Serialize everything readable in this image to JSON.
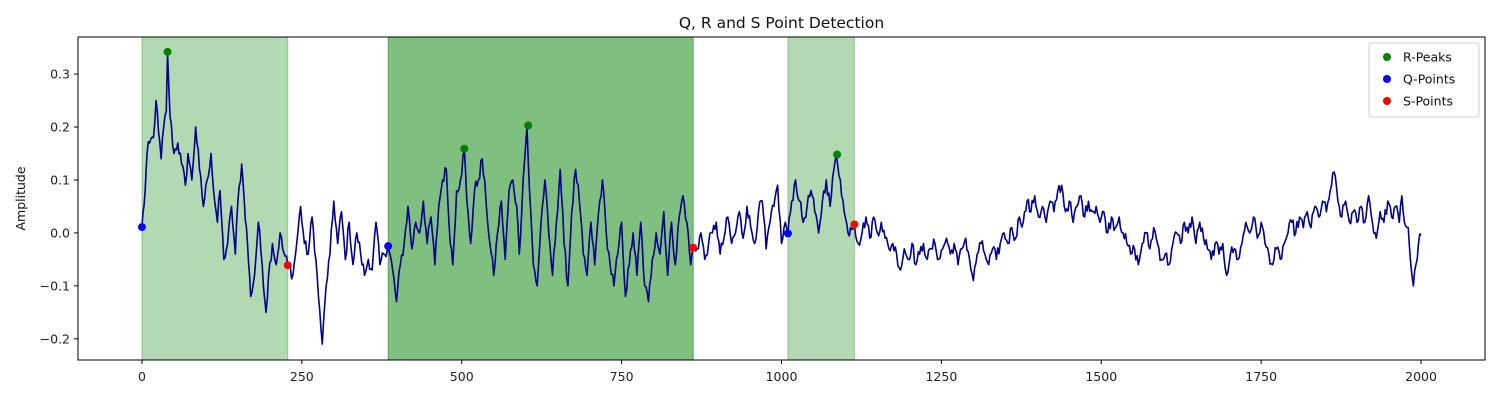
{
  "chart_data": {
    "type": "line",
    "title": "Q, R and S Point Detection",
    "xlabel": "",
    "ylabel": "Amplitude",
    "xlim": [
      -100,
      2100
    ],
    "ylim": [
      -0.24,
      0.37
    ],
    "xticks": [
      0,
      250,
      500,
      750,
      1000,
      1250,
      1500,
      1750,
      2000
    ],
    "yticks": [
      -0.2,
      -0.1,
      0.0,
      0.1,
      0.2,
      0.3
    ],
    "grid": false,
    "legend_position": "top-right",
    "colors": {
      "signal": "#00008b",
      "r_peaks": "#008000",
      "q_points": "#0000ff",
      "s_points": "#ff0000",
      "region": "#008000"
    },
    "shaded_regions": [
      {
        "x0": 0,
        "x1": 228,
        "opacity": 0.3
      },
      {
        "x0": 385,
        "x1": 862,
        "opacity": 0.5
      },
      {
        "x0": 1010,
        "x1": 1114,
        "opacity": 0.3
      }
    ],
    "signal_anchors": [
      [
        0,
        0.012
      ],
      [
        5,
        0.08
      ],
      [
        8,
        0.15
      ],
      [
        12,
        0.17
      ],
      [
        18,
        0.18
      ],
      [
        22,
        0.25
      ],
      [
        26,
        0.19
      ],
      [
        30,
        0.14
      ],
      [
        34,
        0.2
      ],
      [
        38,
        0.23
      ],
      [
        40,
        0.34
      ],
      [
        44,
        0.22
      ],
      [
        50,
        0.15
      ],
      [
        56,
        0.17
      ],
      [
        62,
        0.13
      ],
      [
        68,
        0.09
      ],
      [
        72,
        0.15
      ],
      [
        78,
        0.1
      ],
      [
        84,
        0.2
      ],
      [
        90,
        0.12
      ],
      [
        96,
        0.05
      ],
      [
        102,
        0.1
      ],
      [
        108,
        0.15
      ],
      [
        112,
        0.08
      ],
      [
        118,
        0.02
      ],
      [
        122,
        0.08
      ],
      [
        128,
        -0.05
      ],
      [
        134,
        -0.02
      ],
      [
        140,
        0.05
      ],
      [
        146,
        -0.04
      ],
      [
        150,
        0.06
      ],
      [
        156,
        0.13
      ],
      [
        160,
        0.06
      ],
      [
        165,
        -0.02
      ],
      [
        170,
        -0.12
      ],
      [
        176,
        -0.08
      ],
      [
        182,
        0.02
      ],
      [
        188,
        -0.06
      ],
      [
        194,
        -0.15
      ],
      [
        198,
        -0.08
      ],
      [
        204,
        -0.02
      ],
      [
        210,
        -0.06
      ],
      [
        216,
        0.0
      ],
      [
        220,
        -0.03
      ],
      [
        228,
        -0.06
      ],
      [
        236,
        -0.08
      ],
      [
        242,
        -0.02
      ],
      [
        248,
        0.05
      ],
      [
        254,
        -0.02
      ],
      [
        260,
        -0.04
      ],
      [
        266,
        0.03
      ],
      [
        272,
        -0.05
      ],
      [
        276,
        -0.12
      ],
      [
        282,
        -0.21
      ],
      [
        288,
        -0.1
      ],
      [
        294,
        -0.04
      ],
      [
        300,
        0.06
      ],
      [
        306,
        -0.02
      ],
      [
        312,
        0.04
      ],
      [
        318,
        -0.05
      ],
      [
        324,
        0.02
      ],
      [
        330,
        -0.06
      ],
      [
        336,
        0.0
      ],
      [
        342,
        -0.04
      ],
      [
        348,
        -0.08
      ],
      [
        354,
        -0.05
      ],
      [
        360,
        -0.07
      ],
      [
        366,
        0.02
      ],
      [
        372,
        -0.06
      ],
      [
        378,
        -0.04
      ],
      [
        385,
        -0.025
      ],
      [
        392,
        -0.07
      ],
      [
        398,
        -0.13
      ],
      [
        404,
        -0.06
      ],
      [
        410,
        -0.02
      ],
      [
        416,
        0.05
      ],
      [
        422,
        -0.03
      ],
      [
        428,
        0.02
      ],
      [
        434,
        0.0
      ],
      [
        440,
        0.06
      ],
      [
        446,
        -0.02
      ],
      [
        452,
        0.03
      ],
      [
        458,
        -0.06
      ],
      [
        464,
        0.05
      ],
      [
        470,
        0.1
      ],
      [
        476,
        0.12
      ],
      [
        480,
        0.02
      ],
      [
        486,
        -0.06
      ],
      [
        492,
        0.08
      ],
      [
        498,
        0.1
      ],
      [
        504,
        0.16
      ],
      [
        508,
        0.06
      ],
      [
        514,
        -0.02
      ],
      [
        520,
        0.08
      ],
      [
        526,
        0.1
      ],
      [
        532,
        0.14
      ],
      [
        538,
        0.06
      ],
      [
        544,
        -0.02
      ],
      [
        550,
        -0.08
      ],
      [
        556,
        0.0
      ],
      [
        562,
        0.06
      ],
      [
        568,
        -0.05
      ],
      [
        574,
        0.08
      ],
      [
        580,
        0.1
      ],
      [
        586,
        0.05
      ],
      [
        590,
        -0.04
      ],
      [
        596,
        0.1
      ],
      [
        602,
        0.2
      ],
      [
        606,
        0.08
      ],
      [
        612,
        -0.06
      ],
      [
        618,
        -0.1
      ],
      [
        624,
        0.02
      ],
      [
        630,
        0.1
      ],
      [
        636,
        0.0
      ],
      [
        642,
        -0.08
      ],
      [
        648,
        0.02
      ],
      [
        654,
        0.12
      ],
      [
        660,
        -0.02
      ],
      [
        666,
        -0.1
      ],
      [
        672,
        0.04
      ],
      [
        678,
        0.12
      ],
      [
        684,
        0.06
      ],
      [
        690,
        -0.04
      ],
      [
        696,
        -0.08
      ],
      [
        702,
        0.02
      ],
      [
        708,
        -0.06
      ],
      [
        714,
        0.04
      ],
      [
        720,
        0.1
      ],
      [
        726,
        0.0
      ],
      [
        732,
        -0.06
      ],
      [
        738,
        -0.1
      ],
      [
        744,
        -0.04
      ],
      [
        750,
        0.02
      ],
      [
        756,
        -0.12
      ],
      [
        762,
        -0.06
      ],
      [
        768,
        0.0
      ],
      [
        774,
        -0.08
      ],
      [
        780,
        0.02
      ],
      [
        786,
        -0.1
      ],
      [
        792,
        -0.13
      ],
      [
        798,
        -0.05
      ],
      [
        804,
        0.0
      ],
      [
        810,
        -0.04
      ],
      [
        816,
        0.04
      ],
      [
        822,
        -0.08
      ],
      [
        828,
        0.02
      ],
      [
        834,
        -0.06
      ],
      [
        840,
        0.03
      ],
      [
        846,
        0.07
      ],
      [
        852,
        0.02
      ],
      [
        858,
        -0.06
      ],
      [
        862,
        -0.028
      ],
      [
        868,
        -0.03
      ],
      [
        874,
        0.0
      ],
      [
        880,
        -0.05
      ],
      [
        886,
        -0.02
      ],
      [
        892,
        0.0
      ],
      [
        898,
        0.02
      ],
      [
        904,
        -0.04
      ],
      [
        910,
        -0.01
      ],
      [
        916,
        0.03
      ],
      [
        922,
        -0.02
      ],
      [
        928,
        0.0
      ],
      [
        934,
        0.04
      ],
      [
        940,
        -0.01
      ],
      [
        946,
        0.05
      ],
      [
        952,
        0.01
      ],
      [
        958,
        -0.02
      ],
      [
        964,
        0.04
      ],
      [
        970,
        0.06
      ],
      [
        976,
        -0.03
      ],
      [
        982,
        0.02
      ],
      [
        988,
        0.05
      ],
      [
        994,
        0.09
      ],
      [
        1000,
        -0.02
      ],
      [
        1006,
        0.02
      ],
      [
        1010,
        -0.002
      ],
      [
        1016,
        0.06
      ],
      [
        1022,
        0.1
      ],
      [
        1028,
        0.06
      ],
      [
        1034,
        0.02
      ],
      [
        1040,
        0.05
      ],
      [
        1046,
        0.08
      ],
      [
        1052,
        0.04
      ],
      [
        1058,
        0.0
      ],
      [
        1064,
        0.06
      ],
      [
        1070,
        0.1
      ],
      [
        1076,
        0.05
      ],
      [
        1082,
        0.12
      ],
      [
        1086,
        0.148
      ],
      [
        1092,
        0.1
      ],
      [
        1098,
        0.04
      ],
      [
        1104,
        0.0
      ],
      [
        1108,
        0.01
      ],
      [
        1114,
        0.016
      ],
      [
        1120,
        -0.02
      ],
      [
        1126,
        0.0
      ],
      [
        1132,
        0.03
      ],
      [
        1138,
        -0.01
      ],
      [
        1144,
        0.03
      ],
      [
        1150,
        0.0
      ],
      [
        1156,
        0.02
      ],
      [
        1162,
        -0.01
      ],
      [
        1168,
        -0.03
      ],
      [
        1174,
        -0.02
      ],
      [
        1180,
        -0.04
      ],
      [
        1186,
        -0.07
      ],
      [
        1192,
        -0.03
      ],
      [
        1198,
        -0.05
      ],
      [
        1204,
        -0.02
      ],
      [
        1210,
        -0.06
      ],
      [
        1216,
        -0.04
      ],
      [
        1222,
        -0.02
      ],
      [
        1228,
        -0.05
      ],
      [
        1234,
        -0.03
      ],
      [
        1240,
        -0.02
      ],
      [
        1246,
        -0.05
      ],
      [
        1252,
        -0.03
      ],
      [
        1258,
        -0.01
      ],
      [
        1264,
        -0.04
      ],
      [
        1270,
        -0.02
      ],
      [
        1276,
        -0.06
      ],
      [
        1282,
        -0.03
      ],
      [
        1288,
        -0.01
      ],
      [
        1294,
        -0.05
      ],
      [
        1300,
        -0.09
      ],
      [
        1306,
        -0.04
      ],
      [
        1312,
        -0.02
      ],
      [
        1318,
        -0.04
      ],
      [
        1324,
        -0.06
      ],
      [
        1330,
        -0.03
      ],
      [
        1336,
        -0.05
      ],
      [
        1342,
        -0.02
      ],
      [
        1348,
        0.0
      ],
      [
        1354,
        -0.02
      ],
      [
        1360,
        0.01
      ],
      [
        1366,
        -0.01
      ],
      [
        1372,
        0.03
      ],
      [
        1378,
        0.02
      ],
      [
        1384,
        0.06
      ],
      [
        1390,
        0.04
      ],
      [
        1396,
        0.07
      ],
      [
        1402,
        0.03
      ],
      [
        1408,
        0.05
      ],
      [
        1414,
        0.02
      ],
      [
        1420,
        0.06
      ],
      [
        1426,
        0.04
      ],
      [
        1432,
        0.08
      ],
      [
        1438,
        0.09
      ],
      [
        1444,
        0.04
      ],
      [
        1450,
        0.06
      ],
      [
        1456,
        0.02
      ],
      [
        1462,
        0.05
      ],
      [
        1468,
        0.07
      ],
      [
        1474,
        0.03
      ],
      [
        1480,
        0.06
      ],
      [
        1486,
        0.04
      ],
      [
        1492,
        0.05
      ],
      [
        1498,
        0.02
      ],
      [
        1504,
        0.04
      ],
      [
        1510,
        0.0
      ],
      [
        1516,
        0.03
      ],
      [
        1522,
        0.01
      ],
      [
        1528,
        0.03
      ],
      [
        1534,
        0.0
      ],
      [
        1540,
        -0.02
      ],
      [
        1546,
        -0.04
      ],
      [
        1552,
        -0.03
      ],
      [
        1558,
        -0.06
      ],
      [
        1564,
        -0.02
      ],
      [
        1570,
        0.0
      ],
      [
        1576,
        -0.03
      ],
      [
        1582,
        0.01
      ],
      [
        1588,
        -0.02
      ],
      [
        1594,
        -0.05
      ],
      [
        1600,
        -0.04
      ],
      [
        1606,
        -0.06
      ],
      [
        1612,
        -0.02
      ],
      [
        1618,
        0.0
      ],
      [
        1624,
        -0.02
      ],
      [
        1630,
        0.02
      ],
      [
        1636,
        0.0
      ],
      [
        1642,
        0.03
      ],
      [
        1648,
        -0.02
      ],
      [
        1654,
        0.02
      ],
      [
        1660,
        -0.01
      ],
      [
        1666,
        -0.03
      ],
      [
        1672,
        -0.05
      ],
      [
        1678,
        -0.02
      ],
      [
        1684,
        -0.04
      ],
      [
        1690,
        -0.02
      ],
      [
        1696,
        -0.08
      ],
      [
        1702,
        -0.04
      ],
      [
        1708,
        -0.03
      ],
      [
        1714,
        -0.05
      ],
      [
        1720,
        -0.02
      ],
      [
        1726,
        0.02
      ],
      [
        1732,
        0.0
      ],
      [
        1738,
        0.03
      ],
      [
        1744,
        -0.01
      ],
      [
        1750,
        0.02
      ],
      [
        1756,
        -0.02
      ],
      [
        1762,
        -0.04
      ],
      [
        1768,
        -0.06
      ],
      [
        1774,
        -0.03
      ],
      [
        1780,
        -0.05
      ],
      [
        1786,
        -0.02
      ],
      [
        1792,
        0.0
      ],
      [
        1798,
        0.02
      ],
      [
        1804,
        0.0
      ],
      [
        1810,
        0.03
      ],
      [
        1816,
        0.01
      ],
      [
        1822,
        0.04
      ],
      [
        1828,
        0.01
      ],
      [
        1834,
        0.05
      ],
      [
        1840,
        0.03
      ],
      [
        1846,
        0.06
      ],
      [
        1852,
        0.04
      ],
      [
        1858,
        0.08
      ],
      [
        1864,
        0.115
      ],
      [
        1870,
        0.06
      ],
      [
        1876,
        0.03
      ],
      [
        1882,
        0.06
      ],
      [
        1888,
        0.02
      ],
      [
        1894,
        0.04
      ],
      [
        1900,
        0.02
      ],
      [
        1906,
        0.05
      ],
      [
        1912,
        0.02
      ],
      [
        1918,
        0.07
      ],
      [
        1924,
        0.02
      ],
      [
        1930,
        -0.01
      ],
      [
        1936,
        0.04
      ],
      [
        1942,
        0.02
      ],
      [
        1948,
        0.06
      ],
      [
        1954,
        0.03
      ],
      [
        1960,
        0.05
      ],
      [
        1966,
        0.02
      ],
      [
        1970,
        0.07
      ],
      [
        1974,
        0.02
      ],
      [
        1980,
        0.01
      ],
      [
        1984,
        -0.06
      ],
      [
        1988,
        -0.1
      ],
      [
        1992,
        -0.06
      ],
      [
        1996,
        -0.02
      ],
      [
        2000,
        -0.005
      ]
    ],
    "series": [
      {
        "name": "R-Peaks",
        "marker": "circle",
        "color": "#008000",
        "points": [
          [
            40,
            0.342
          ],
          [
            504,
            0.159
          ],
          [
            604,
            0.203
          ],
          [
            1087,
            0.148
          ]
        ]
      },
      {
        "name": "Q-Points",
        "marker": "circle",
        "color": "#0000ff",
        "points": [
          [
            0,
            0.011
          ],
          [
            385,
            -0.025
          ],
          [
            1010,
            -0.001
          ]
        ]
      },
      {
        "name": "S-Points",
        "marker": "circle",
        "color": "#ff0000",
        "points": [
          [
            228,
            -0.061
          ],
          [
            862,
            -0.028
          ],
          [
            1114,
            0.016
          ]
        ]
      }
    ]
  }
}
